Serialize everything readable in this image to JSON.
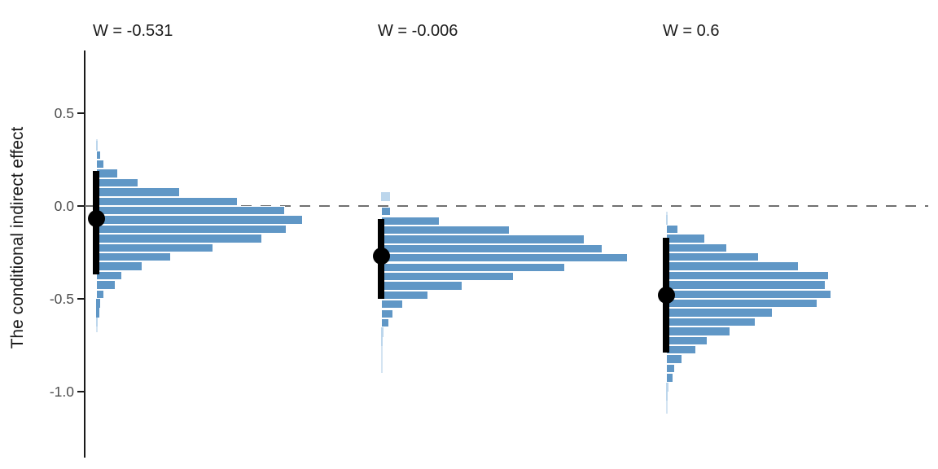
{
  "chart_data": {
    "type": "bar",
    "subtype": "horizontal-histogram-panels (posterior distributions of conditional indirect effect at three moderator values)",
    "title": "",
    "xlabel": "",
    "ylabel": "The conditional indirect effect",
    "ylim": [
      -1.36,
      0.84
    ],
    "grid": false,
    "legend": false,
    "bin_width": 0.05,
    "reference_line_y": 0.0,
    "yticks": [
      {
        "value": 0.5,
        "label": "0.5"
      },
      {
        "value": 0.0,
        "label": "0.0"
      },
      {
        "value": -0.5,
        "label": "-0.5"
      },
      {
        "value": -1.0,
        "label": "-1.0"
      }
    ],
    "colors": {
      "bar_fill": "#6097C6",
      "bar_stroke": "#ffffff",
      "faint_bar_fill": "#bcd6ec",
      "tail_fill": "#d4e4f2",
      "reference_line": "#707070",
      "interval": "#000000",
      "point": "#000000",
      "axis": "#1a1a1a",
      "tick_label": "#4d4d4d",
      "title_text": "#1a1a1a"
    },
    "panels": [
      {
        "title": "W = -0.531",
        "w": -0.531,
        "estimate": -0.07,
        "ci_low": -0.37,
        "ci_high": 0.19,
        "bars": [
          {
            "v": 0.325,
            "len": 2,
            "faint": true
          },
          {
            "v": 0.275,
            "len": 6
          },
          {
            "v": 0.225,
            "len": 10
          },
          {
            "v": 0.175,
            "len": 27
          },
          {
            "v": 0.125,
            "len": 52
          },
          {
            "v": 0.075,
            "len": 103
          },
          {
            "v": 0.025,
            "len": 174
          },
          {
            "v": -0.025,
            "len": 232
          },
          {
            "v": -0.075,
            "len": 254
          },
          {
            "v": -0.125,
            "len": 234
          },
          {
            "v": -0.175,
            "len": 204
          },
          {
            "v": -0.225,
            "len": 144
          },
          {
            "v": -0.275,
            "len": 92
          },
          {
            "v": -0.325,
            "len": 57
          },
          {
            "v": -0.375,
            "len": 32
          },
          {
            "v": -0.425,
            "len": 24
          },
          {
            "v": -0.475,
            "len": 10
          },
          {
            "v": -0.525,
            "len": 5
          },
          {
            "v": -0.575,
            "len": 3.5
          },
          {
            "v": -0.625,
            "len": 2,
            "faint": true
          }
        ],
        "tails": [
          {
            "from": 0.36,
            "to": 0.3
          },
          {
            "from": -0.6,
            "to": -0.68
          }
        ]
      },
      {
        "title": "W = -0.006",
        "w": -0.006,
        "estimate": -0.27,
        "ci_low": -0.5,
        "ci_high": -0.07,
        "bars": [
          {
            "v": 0.05,
            "len": 11,
            "faint": true
          },
          {
            "v": -0.03,
            "len": 12
          },
          {
            "v": -0.08,
            "len": 72
          },
          {
            "v": -0.13,
            "len": 158
          },
          {
            "v": -0.18,
            "len": 250
          },
          {
            "v": -0.23,
            "len": 272
          },
          {
            "v": -0.28,
            "len": 303
          },
          {
            "v": -0.33,
            "len": 226
          },
          {
            "v": -0.38,
            "len": 163
          },
          {
            "v": -0.43,
            "len": 100
          },
          {
            "v": -0.48,
            "len": 58
          },
          {
            "v": -0.53,
            "len": 27
          },
          {
            "v": -0.58,
            "len": 15
          },
          {
            "v": -0.63,
            "len": 10
          },
          {
            "v": -0.68,
            "len": 3,
            "faint": true
          },
          {
            "v": -0.73,
            "len": 2,
            "faint": true
          }
        ],
        "tails": [
          {
            "from": -0.655,
            "to": -0.9
          }
        ]
      },
      {
        "title": "W = 0.6",
        "w": 0.6,
        "estimate": -0.48,
        "ci_low": -0.79,
        "ci_high": -0.17,
        "bars": [
          {
            "v": -0.075,
            "len": 2,
            "faint": true
          },
          {
            "v": -0.125,
            "len": 15
          },
          {
            "v": -0.175,
            "len": 48
          },
          {
            "v": -0.225,
            "len": 75
          },
          {
            "v": -0.275,
            "len": 114
          },
          {
            "v": -0.325,
            "len": 163
          },
          {
            "v": -0.375,
            "len": 200
          },
          {
            "v": -0.425,
            "len": 196
          },
          {
            "v": -0.475,
            "len": 203
          },
          {
            "v": -0.525,
            "len": 186
          },
          {
            "v": -0.575,
            "len": 131
          },
          {
            "v": -0.625,
            "len": 110
          },
          {
            "v": -0.675,
            "len": 79
          },
          {
            "v": -0.725,
            "len": 51
          },
          {
            "v": -0.775,
            "len": 37
          },
          {
            "v": -0.825,
            "len": 20
          },
          {
            "v": -0.875,
            "len": 11
          },
          {
            "v": -0.925,
            "len": 9
          },
          {
            "v": -0.975,
            "len": 3,
            "faint": true
          },
          {
            "v": -1.025,
            "len": 2,
            "faint": true
          }
        ],
        "tails": [
          {
            "from": -0.03,
            "to": -0.1
          },
          {
            "from": -0.95,
            "to": -1.12
          }
        ]
      }
    ]
  }
}
